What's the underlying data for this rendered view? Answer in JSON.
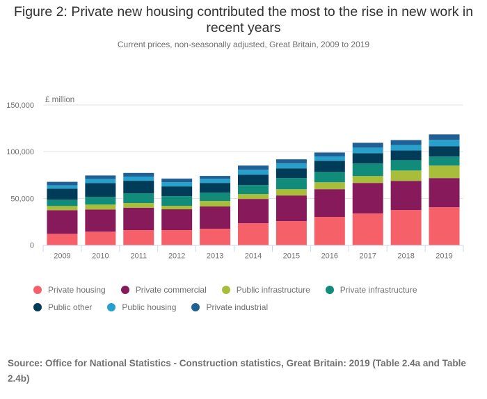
{
  "chart_data": {
    "type": "bar",
    "stacked": true,
    "title": "Figure 2: Private new housing contributed the most to the rise in new work in recent years",
    "subtitle": "Current prices, non-seasonally adjusted, Great Britain, 2009 to 2019",
    "xlabel": "",
    "ylabel": "£ million",
    "ylim": [
      0,
      150000
    ],
    "yticks": [
      0,
      50000,
      100000,
      150000
    ],
    "ytick_labels": [
      "0",
      "50,000",
      "100,000",
      "150,000"
    ],
    "grid": true,
    "legend_position": "bottom-left",
    "categories": [
      "2009",
      "2010",
      "2011",
      "2012",
      "2013",
      "2014",
      "2015",
      "2016",
      "2017",
      "2018",
      "2019"
    ],
    "series": [
      {
        "name": "Private housing",
        "color": "#f66068",
        "values": [
          12000,
          14300,
          16000,
          16000,
          17500,
          23400,
          25600,
          30100,
          33800,
          37500,
          40500
        ]
      },
      {
        "name": "Private commercial",
        "color": "#871a5b",
        "values": [
          25300,
          23800,
          24000,
          22300,
          23800,
          26000,
          27500,
          29700,
          32700,
          31200,
          31200
        ]
      },
      {
        "name": "Public infrastructure",
        "color": "#a8bd3a",
        "values": [
          4500,
          5200,
          5000,
          3700,
          5900,
          5200,
          6700,
          7400,
          7400,
          11100,
          13400
        ]
      },
      {
        "name": "Private infrastructure",
        "color": "#118c7b",
        "values": [
          6700,
          8400,
          10400,
          10400,
          8900,
          9700,
          11900,
          11100,
          13400,
          11100,
          9700
        ]
      },
      {
        "name": "Public other",
        "color": "#003c57",
        "values": [
          11900,
          14600,
          13400,
          10400,
          10400,
          11100,
          10400,
          11900,
          11100,
          10400,
          11100
        ]
      },
      {
        "name": "Public housing",
        "color": "#27a0cc",
        "values": [
          3500,
          4500,
          4500,
          4500,
          4500,
          5200,
          5200,
          4700,
          5900,
          5900,
          6700
        ]
      },
      {
        "name": "Private industrial",
        "color": "#206095",
        "values": [
          3800,
          3700,
          3900,
          3900,
          3000,
          4500,
          4500,
          4200,
          5200,
          5200,
          5900
        ]
      }
    ]
  },
  "source": "Source: Office for National Statistics - Construction statistics, Great Britain: 2019 (Table 2.4a and Table 2.4b)"
}
